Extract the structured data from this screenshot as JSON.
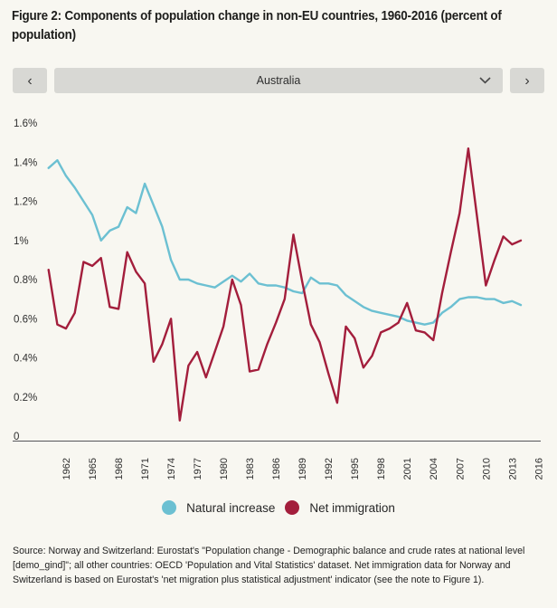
{
  "figure": {
    "title": "Figure 2: Components of population change in non-EU countries, 1960-2016 (percent of population)"
  },
  "controls": {
    "prev_icon": "‹",
    "next_icon": "›",
    "selected_country": "Australia"
  },
  "footer": {
    "source": "Source: Norway and Switzerland:  Eurostat's \"Population change - Demographic balance and crude rates at national level [demo_gind]\"; all other countries: OECD 'Population and Vital Statistics' dataset. Net immigration data for  Norway and Switzerland is based on Eurostat's  'net migration plus statistical adjustment' indicator (see the note to Figure 1)."
  },
  "colors": {
    "natural_increase": "#6cc0d2",
    "net_immigration": "#a31e3c",
    "control_background": "#d8d8d4",
    "page_background": "#f8f7f1"
  },
  "chart_data": {
    "type": "line",
    "title": "Components of population change, Australia (percent of population)",
    "xlabel": "",
    "ylabel": "",
    "grid": false,
    "legend_position": "bottom",
    "xlim": [
      1960,
      2016
    ],
    "ylim": [
      0,
      1.6
    ],
    "ytick_values": [
      0,
      0.2,
      0.4,
      0.6,
      0.8,
      1.0,
      1.2,
      1.4,
      1.6
    ],
    "ytick_labels": [
      "0",
      "0.2%",
      "0.4%",
      "0.6%",
      "0.8%",
      "1%",
      "1.2%",
      "1.4%",
      "1.6%"
    ],
    "xtick_values": [
      1962,
      1965,
      1968,
      1971,
      1974,
      1977,
      1980,
      1983,
      1986,
      1989,
      1992,
      1995,
      1998,
      2001,
      2004,
      2007,
      2010,
      2013,
      2016
    ],
    "x": [
      1960,
      1961,
      1962,
      1963,
      1964,
      1965,
      1966,
      1967,
      1968,
      1969,
      1970,
      1971,
      1972,
      1973,
      1974,
      1975,
      1976,
      1977,
      1978,
      1979,
      1980,
      1981,
      1982,
      1983,
      1984,
      1985,
      1986,
      1987,
      1988,
      1989,
      1990,
      1991,
      1992,
      1993,
      1994,
      1995,
      1996,
      1997,
      1998,
      1999,
      2000,
      2001,
      2002,
      2003,
      2004,
      2005,
      2006,
      2007,
      2008,
      2009,
      2010,
      2011,
      2012,
      2013,
      2014
    ],
    "series": [
      {
        "name": "Natural increase",
        "color": "#6cc0d2",
        "values": [
          1.37,
          1.41,
          1.33,
          1.27,
          1.2,
          1.13,
          1.0,
          1.05,
          1.07,
          1.17,
          1.14,
          1.29,
          1.18,
          1.07,
          0.9,
          0.8,
          0.8,
          0.78,
          0.77,
          0.76,
          0.79,
          0.82,
          0.79,
          0.83,
          0.78,
          0.77,
          0.77,
          0.76,
          0.74,
          0.73,
          0.81,
          0.78,
          0.78,
          0.77,
          0.72,
          0.69,
          0.66,
          0.64,
          0.63,
          0.62,
          0.61,
          0.59,
          0.58,
          0.57,
          0.58,
          0.63,
          0.66,
          0.7,
          0.71,
          0.71,
          0.7,
          0.7,
          0.68,
          0.69,
          0.67
        ]
      },
      {
        "name": "Net immigration",
        "color": "#a31e3c",
        "values": [
          0.85,
          0.57,
          0.55,
          0.63,
          0.89,
          0.87,
          0.91,
          0.66,
          0.65,
          0.94,
          0.84,
          0.78,
          0.38,
          0.47,
          0.6,
          0.08,
          0.36,
          0.43,
          0.3,
          0.43,
          0.56,
          0.8,
          0.67,
          0.33,
          0.34,
          0.47,
          0.58,
          0.7,
          1.03,
          0.79,
          0.57,
          0.48,
          0.32,
          0.17,
          0.56,
          0.5,
          0.35,
          0.41,
          0.53,
          0.55,
          0.58,
          0.68,
          0.54,
          0.53,
          0.49,
          0.73,
          0.94,
          1.14,
          1.47,
          1.12,
          0.77,
          0.9,
          1.02,
          0.98,
          1.0
        ]
      }
    ]
  }
}
